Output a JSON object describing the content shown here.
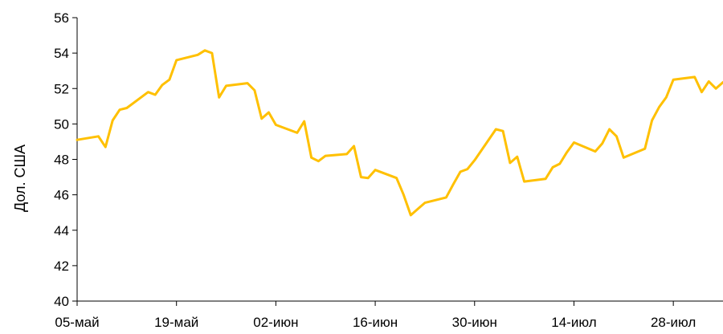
{
  "chart_data": {
    "type": "line",
    "title": "",
    "xlabel": "",
    "ylabel": "Дол. США",
    "ylim": [
      40,
      56
    ],
    "yticks": [
      40,
      42,
      44,
      46,
      48,
      50,
      52,
      54,
      56
    ],
    "xlim": [
      0,
      91
    ],
    "grid": false,
    "legend": "none",
    "line_color": "#FFC000",
    "xticks": [
      {
        "label": "05-май",
        "day": 0
      },
      {
        "label": "19-май",
        "day": 14
      },
      {
        "label": "02-июн",
        "day": 28
      },
      {
        "label": "16-июн",
        "day": 42
      },
      {
        "label": "30-июн",
        "day": 56
      },
      {
        "label": "14-июл",
        "day": 70
      },
      {
        "label": "28-июл",
        "day": 84
      }
    ],
    "series": [
      {
        "values": [
          {
            "day": 0,
            "y": 49.1
          },
          {
            "day": 3,
            "y": 49.3
          },
          {
            "day": 4,
            "y": 48.7
          },
          {
            "day": 5,
            "y": 50.2
          },
          {
            "day": 6,
            "y": 50.8
          },
          {
            "day": 7,
            "y": 50.9
          },
          {
            "day": 10,
            "y": 51.8
          },
          {
            "day": 11,
            "y": 51.65
          },
          {
            "day": 12,
            "y": 52.2
          },
          {
            "day": 13,
            "y": 52.5
          },
          {
            "day": 14,
            "y": 53.6
          },
          {
            "day": 17,
            "y": 53.9
          },
          {
            "day": 18,
            "y": 54.15
          },
          {
            "day": 19,
            "y": 54.0
          },
          {
            "day": 20,
            "y": 51.5
          },
          {
            "day": 21,
            "y": 52.15
          },
          {
            "day": 24,
            "y": 52.3
          },
          {
            "day": 25,
            "y": 51.9
          },
          {
            "day": 26,
            "y": 50.3
          },
          {
            "day": 27,
            "y": 50.65
          },
          {
            "day": 28,
            "y": 49.95
          },
          {
            "day": 31,
            "y": 49.5
          },
          {
            "day": 32,
            "y": 50.15
          },
          {
            "day": 33,
            "y": 48.1
          },
          {
            "day": 34,
            "y": 47.9
          },
          {
            "day": 35,
            "y": 48.2
          },
          {
            "day": 38,
            "y": 48.3
          },
          {
            "day": 39,
            "y": 48.75
          },
          {
            "day": 40,
            "y": 47.0
          },
          {
            "day": 41,
            "y": 46.95
          },
          {
            "day": 42,
            "y": 47.4
          },
          {
            "day": 45,
            "y": 46.95
          },
          {
            "day": 46,
            "y": 46.0
          },
          {
            "day": 47,
            "y": 44.85
          },
          {
            "day": 48,
            "y": 45.2
          },
          {
            "day": 49,
            "y": 45.55
          },
          {
            "day": 52,
            "y": 45.85
          },
          {
            "day": 53,
            "y": 46.6
          },
          {
            "day": 54,
            "y": 47.3
          },
          {
            "day": 55,
            "y": 47.45
          },
          {
            "day": 56,
            "y": 47.95
          },
          {
            "day": 59,
            "y": 49.7
          },
          {
            "day": 60,
            "y": 49.6
          },
          {
            "day": 61,
            "y": 47.8
          },
          {
            "day": 62,
            "y": 48.15
          },
          {
            "day": 63,
            "y": 46.75
          },
          {
            "day": 66,
            "y": 46.9
          },
          {
            "day": 67,
            "y": 47.55
          },
          {
            "day": 68,
            "y": 47.75
          },
          {
            "day": 69,
            "y": 48.4
          },
          {
            "day": 70,
            "y": 48.95
          },
          {
            "day": 73,
            "y": 48.45
          },
          {
            "day": 74,
            "y": 48.9
          },
          {
            "day": 75,
            "y": 49.7
          },
          {
            "day": 76,
            "y": 49.3
          },
          {
            "day": 77,
            "y": 48.1
          },
          {
            "day": 80,
            "y": 48.6
          },
          {
            "day": 81,
            "y": 50.2
          },
          {
            "day": 82,
            "y": 50.95
          },
          {
            "day": 83,
            "y": 51.5
          },
          {
            "day": 84,
            "y": 52.5
          },
          {
            "day": 87,
            "y": 52.65
          },
          {
            "day": 88,
            "y": 51.8
          },
          {
            "day": 89,
            "y": 52.4
          },
          {
            "day": 90,
            "y": 52.0
          },
          {
            "day": 91,
            "y": 52.35
          }
        ]
      }
    ]
  }
}
